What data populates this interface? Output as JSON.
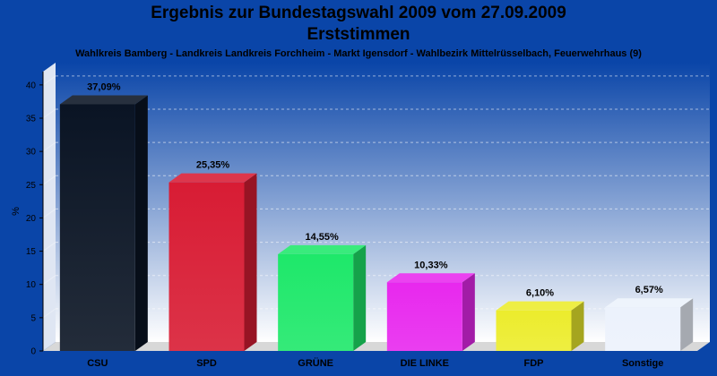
{
  "chart_data": {
    "type": "bar",
    "title": "Ergebnis zur Bundestagswahl 2009 vom 27.09.2009",
    "subtitle": "Erststimmen",
    "caption": "Wahlkreis Bamberg - Landkreis Landkreis Forchheim - Markt Igensdorf - Wahlbezirk Mittelrüsselbach, Feuerwehrhaus (9)",
    "ylabel": "%",
    "ylim": [
      0,
      42
    ],
    "yticks": [
      0,
      5,
      10,
      15,
      20,
      25,
      30,
      35,
      40
    ],
    "grid": true,
    "categories": [
      "CSU",
      "SPD",
      "GRÜNE",
      "DIE LINKE",
      "FDP",
      "Sonstige"
    ],
    "values": [
      37.09,
      25.35,
      14.55,
      10.33,
      6.1,
      6.57
    ],
    "value_labels": [
      "37,09%",
      "25,35%",
      "14,55%",
      "10,33%",
      "6,10%",
      "6,57%"
    ],
    "colors": [
      "#0a1424",
      "#d81c34",
      "#1ee86a",
      "#e828ee",
      "#ecec2c",
      "#ecf2fc"
    ]
  }
}
